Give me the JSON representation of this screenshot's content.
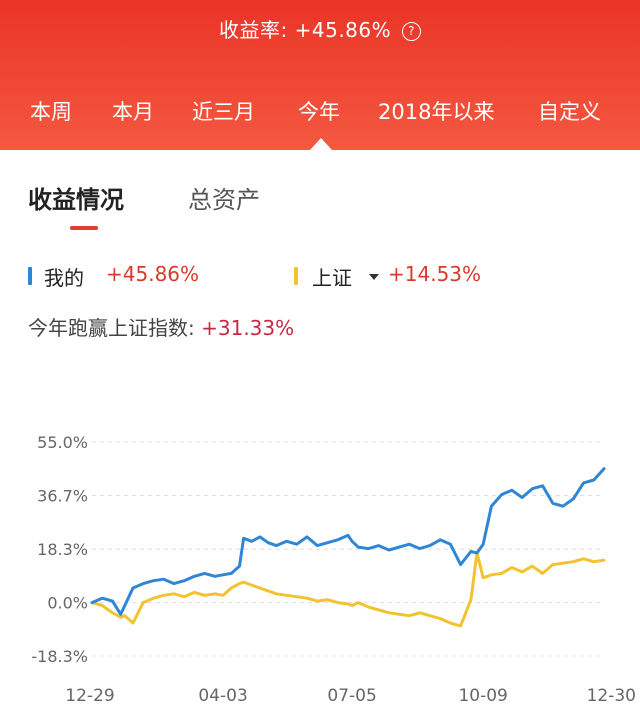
{
  "header": {
    "rate_label": "收益率:",
    "rate_value": "+45.86%",
    "help_icon": "?",
    "tabs": [
      {
        "label": "本周",
        "active": false
      },
      {
        "label": "本月",
        "active": false
      },
      {
        "label": "近三月",
        "active": false
      },
      {
        "label": "今年",
        "active": true
      },
      {
        "label": "2018年以来",
        "active": false
      },
      {
        "label": "自定义",
        "active": false
      }
    ]
  },
  "subtabs": [
    {
      "label": "收益情况",
      "active": true
    },
    {
      "label": "总资产",
      "active": false
    }
  ],
  "legend": {
    "mine_label": "我的",
    "mine_value": "+45.86%",
    "index_label": "上证",
    "index_value": "+14.53%"
  },
  "beat": {
    "label": "今年跑赢上证指数:",
    "value": "+31.33%"
  },
  "colors": {
    "header_red": "#ea3427",
    "mine_blue": "#2f86d6",
    "index_yellow": "#f2c230",
    "positive_red": "#d93a2b"
  },
  "chart_data": {
    "type": "line",
    "y_tick_labels": [
      "55.0%",
      "36.7%",
      "18.3%",
      "0.0%",
      "-18.3%"
    ],
    "y_ticks": [
      55.0,
      36.7,
      18.3,
      0.0,
      -18.3
    ],
    "ylim": [
      -18.3,
      55.0
    ],
    "x_tick_labels": [
      "12-29",
      "04-03",
      "07-05",
      "10-09",
      "12-30"
    ],
    "x_tick_positions": [
      0,
      64,
      127,
      191,
      250
    ],
    "xlim": [
      0,
      250
    ],
    "grid": "horizontal-dashed",
    "series": [
      {
        "name": "我的",
        "x": [
          0,
          5,
          10,
          14,
          16,
          20,
          25,
          30,
          35,
          40,
          45,
          50,
          55,
          60,
          64,
          68,
          72,
          74,
          78,
          82,
          86,
          90,
          95,
          100,
          105,
          110,
          115,
          120,
          125,
          127,
          130,
          135,
          140,
          145,
          150,
          155,
          160,
          165,
          170,
          175,
          180,
          185,
          188,
          191,
          195,
          200,
          205,
          210,
          215,
          220,
          225,
          230,
          235,
          240,
          245,
          250
        ],
        "y": [
          0.0,
          1.5,
          0.5,
          -4.0,
          -1.0,
          5.0,
          6.5,
          7.5,
          8.0,
          6.5,
          7.5,
          9.0,
          10.0,
          9.0,
          9.5,
          10.0,
          12.5,
          22.0,
          21.0,
          22.5,
          20.5,
          19.5,
          21.0,
          20.0,
          22.5,
          19.5,
          20.5,
          21.5,
          23.0,
          21.0,
          19.0,
          18.5,
          19.5,
          18.0,
          19.0,
          20.0,
          18.5,
          19.5,
          21.5,
          20.0,
          13.0,
          17.5,
          17.0,
          20.0,
          33.0,
          37.0,
          38.5,
          36.0,
          39.0,
          40.0,
          34.0,
          33.0,
          35.5,
          41.0,
          42.0,
          45.86
        ]
      },
      {
        "name": "上证",
        "x": [
          0,
          5,
          10,
          14,
          16,
          20,
          25,
          30,
          35,
          40,
          45,
          50,
          55,
          60,
          64,
          68,
          72,
          74,
          78,
          82,
          86,
          90,
          95,
          100,
          105,
          110,
          115,
          120,
          125,
          127,
          130,
          135,
          140,
          145,
          150,
          155,
          160,
          165,
          170,
          175,
          180,
          185,
          188,
          191,
          195,
          200,
          205,
          210,
          215,
          220,
          225,
          230,
          235,
          240,
          245,
          250
        ],
        "y": [
          0.0,
          -1.0,
          -3.5,
          -5.0,
          -4.5,
          -7.0,
          0.0,
          1.5,
          2.5,
          3.0,
          2.0,
          3.5,
          2.5,
          3.0,
          2.5,
          5.0,
          6.5,
          7.0,
          6.0,
          5.0,
          4.0,
          3.0,
          2.5,
          2.0,
          1.5,
          0.5,
          1.0,
          0.0,
          -0.5,
          -1.0,
          0.0,
          -1.5,
          -2.5,
          -3.5,
          -4.0,
          -4.5,
          -3.5,
          -4.5,
          -5.5,
          -7.0,
          -8.0,
          1.0,
          17.0,
          8.5,
          9.5,
          10.0,
          12.0,
          10.5,
          12.5,
          10.0,
          13.0,
          13.5,
          14.0,
          15.0,
          14.0,
          14.53
        ]
      }
    ]
  }
}
